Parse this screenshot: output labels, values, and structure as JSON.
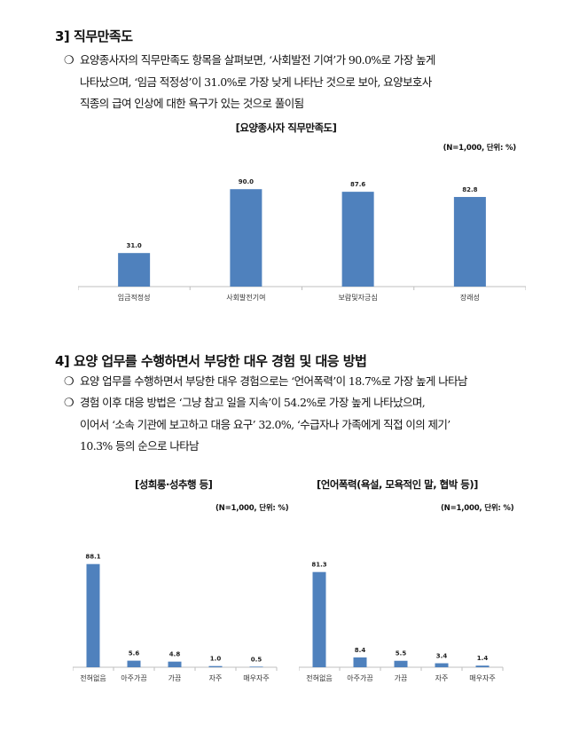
{
  "section3": {
    "heading": "3] 직무만족도",
    "bullets": [
      {
        "line1": "요양종사자의 직무만족도 항목을 살펴보면, ‘사회발전 기여’가 90.0%로 가장 높게",
        "line2": "나타났으며, ‘임금 적정성’이 31.0%로 가장 낮게 나타난 것으로 보아, 요양보호사",
        "line3": "직종의 급여 인상에 대한 욕구가 있는 것으로 풀이됨"
      }
    ]
  },
  "section4": {
    "heading": "4] 요양 업무를 수행하면서 부당한 대우 경험 및 대응 방법",
    "bullets": [
      {
        "line1": "요양 업무를 수행하면서 부당한 대우 경험으로는 ‘언어폭력’이 18.7%로 가장 높게 나타남"
      },
      {
        "line1": "경험 이후 대응 방법은 ‘그냥 참고 일을 지속’이 54.2%로 가장 높게 나타났으며,",
        "line2": "이어서 ‘소속 기관에 보고하고 대응 요구’ 32.0%, ‘수급자나 가족에게 직접 이의 제기’",
        "line3": "10.3% 등의 순으로 나타남"
      }
    ]
  },
  "bullet_symbol": "❍",
  "chart_data": [
    {
      "type": "bar",
      "title": "[요양종사자 직무만족도]",
      "unit_note": "(N=1,000, 단위: %)",
      "categories": [
        "임금적정성",
        "사회발전기여",
        "보람및자긍심",
        "장래성"
      ],
      "values": [
        31.0,
        90.0,
        87.6,
        82.8
      ],
      "value_labels": [
        "31.0",
        "90.0",
        "87.6",
        "82.8"
      ],
      "ylim": [
        0,
        100
      ],
      "grid": false,
      "bar_color": "#4f81bd"
    },
    {
      "type": "bar",
      "title": "[성희롱·성추행 등]",
      "unit_note": "(N=1,000, 단위: %)",
      "categories": [
        "전혀없음",
        "아주가끔",
        "가끔",
        "자주",
        "매우자주"
      ],
      "values": [
        88.1,
        5.6,
        4.8,
        1.0,
        0.5
      ],
      "value_labels": [
        "88.1",
        "5.6",
        "4.8",
        "1.0",
        "0.5"
      ],
      "ylim": [
        0,
        100
      ],
      "grid": false,
      "bar_color": "#4f81bd"
    },
    {
      "type": "bar",
      "title": "[언어폭력(욕설, 모욕적인 말, 협박 등)]",
      "unit_note": "(N=1,000, 단위: %)",
      "categories": [
        "전혀없음",
        "아주가끔",
        "가끔",
        "자주",
        "매우자주"
      ],
      "values": [
        81.3,
        8.4,
        5.5,
        3.4,
        1.4
      ],
      "value_labels": [
        "81.3",
        "8.4",
        "5.5",
        "3.4",
        "1.4"
      ],
      "ylim": [
        0,
        100
      ],
      "grid": false,
      "bar_color": "#4f81bd"
    }
  ]
}
